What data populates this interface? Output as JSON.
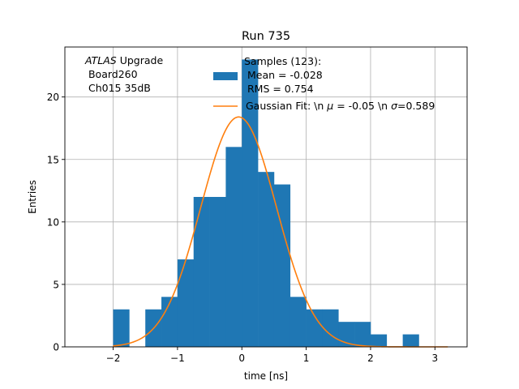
{
  "chart_data": {
    "type": "bar",
    "title": "Run 735",
    "xlabel": "time [ns]",
    "ylabel": "Entries",
    "xlim": [
      -2.75,
      3.5
    ],
    "ylim": [
      0,
      24
    ],
    "grid": true,
    "xticks": [
      -2,
      -1,
      0,
      1,
      2,
      3
    ],
    "xtick_labels": [
      "−2",
      "−1",
      "0",
      "1",
      "2",
      "3"
    ],
    "yticks": [
      0,
      5,
      10,
      15,
      20
    ],
    "ytick_labels": [
      "0",
      "5",
      "10",
      "15",
      "20"
    ],
    "histogram": {
      "bin_edges": [
        -2.0,
        -1.75,
        -1.5,
        -1.25,
        -1.0,
        -0.75,
        -0.5,
        -0.25,
        0.0,
        0.25,
        0.5,
        0.75,
        1.0,
        1.25,
        1.5,
        1.75,
        2.0,
        2.25,
        2.5,
        2.75
      ],
      "counts": [
        3,
        0,
        3,
        4,
        7,
        12,
        12,
        16,
        23,
        14,
        13,
        4,
        3,
        3,
        2,
        2,
        1,
        0,
        1
      ],
      "color": "#1f77b4"
    },
    "gaussian_fit": {
      "mu": -0.05,
      "sigma": 0.589,
      "amplitude": 18.4,
      "color": "#ff7f0e"
    },
    "annotation": {
      "line1_italic": "ATLAS",
      "line1_rest": " Upgrade",
      "line2": " Board260",
      "line3": " Ch015 35dB"
    },
    "legend": {
      "position": "upper-right",
      "hist_line1": "Samples (123):",
      "hist_line2": " Mean = -0.028",
      "hist_line3": " RMS = 0.754",
      "fit_pre": "Gaussian Fit: \\n ",
      "fit_mu_symbol": "μ",
      "fit_mid": " = -0.05 \\n ",
      "fit_sigma_symbol": "σ",
      "fit_post": "=0.589"
    }
  }
}
